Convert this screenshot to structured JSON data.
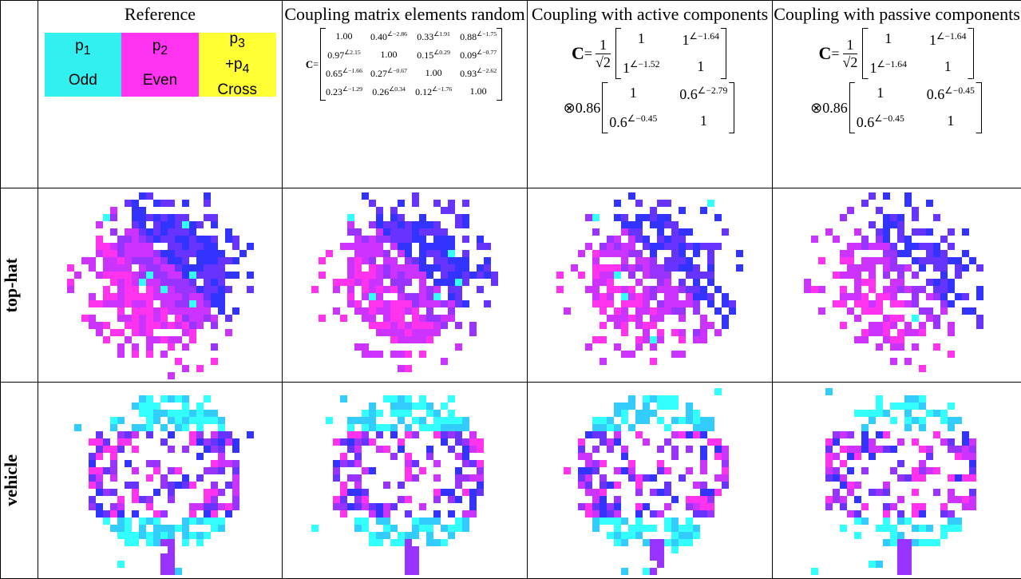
{
  "columns": [
    {
      "title": "Reference",
      "legend": [
        {
          "symbol": [
            {
              "base": "p",
              "sub": "1"
            }
          ],
          "label": "Odd",
          "color": "#33f0f0"
        },
        {
          "symbol": [
            {
              "base": "p",
              "sub": "2"
            }
          ],
          "label": "Even",
          "color": "#ff33f0"
        },
        {
          "symbol": [
            {
              "base": "p",
              "sub": "3"
            },
            {
              "base": "+p",
              "sub": "4"
            }
          ],
          "label": "Cross",
          "color": "#ffff33"
        }
      ]
    },
    {
      "title": "Coupling matrix elements random",
      "formula": {
        "lhs": "C",
        "eq": "=",
        "matrix": [
          [
            {
              "base": "1.00"
            },
            {
              "base": "0.40",
              "exp": "∠−2.86"
            },
            {
              "base": "0.33",
              "exp": "∠1.91"
            },
            {
              "base": "0.88",
              "exp": "∠−1.75"
            }
          ],
          [
            {
              "base": "0.97",
              "exp": "∠2.15"
            },
            {
              "base": "1.00"
            },
            {
              "base": "0.15",
              "exp": "∠0.29"
            },
            {
              "base": "0.09",
              "exp": "∠−0.77"
            }
          ],
          [
            {
              "base": "0.65",
              "exp": "∠−1.66"
            },
            {
              "base": "0.27",
              "exp": "∠−0.67"
            },
            {
              "base": "1.00"
            },
            {
              "base": "0.93",
              "exp": "∠−2.62"
            }
          ],
          [
            {
              "base": "0.23",
              "exp": "∠−1.29"
            },
            {
              "base": "0.26",
              "exp": "∠0.34"
            },
            {
              "base": "0.12",
              "exp": "∠−1.76"
            },
            {
              "base": "1.00"
            }
          ]
        ]
      }
    },
    {
      "title": "Coupling with active components",
      "formula": {
        "lhs": "C",
        "eq": "=",
        "frac": [
          "1",
          "√2"
        ],
        "matrix": [
          [
            {
              "base": "1"
            },
            {
              "base": "1",
              "exp": "∠−1.64"
            }
          ],
          [
            {
              "base": "1",
              "exp": "∠−1.52"
            },
            {
              "base": "1"
            }
          ]
        ],
        "op": "⊗",
        "scale": "0.86",
        "matrix2": [
          [
            {
              "base": "1"
            },
            {
              "base": "0.6",
              "exp": "∠−2.79"
            }
          ],
          [
            {
              "base": "0.6",
              "exp": "∠−0.45"
            },
            {
              "base": "1"
            }
          ]
        ]
      }
    },
    {
      "title": "Coupling with passive components",
      "formula": {
        "lhs": "C",
        "eq": "=",
        "frac": [
          "1",
          "√2"
        ],
        "matrix": [
          [
            {
              "base": "1"
            },
            {
              "base": "1",
              "exp": "∠−1.64"
            }
          ],
          [
            {
              "base": "1",
              "exp": "∠−1.64"
            },
            {
              "base": "1"
            }
          ]
        ],
        "op": "⊗",
        "scale": "0.86",
        "matrix2": [
          [
            {
              "base": "1"
            },
            {
              "base": "0.6",
              "exp": "∠−0.45"
            }
          ],
          [
            {
              "base": "0.6",
              "exp": "∠−0.45"
            },
            {
              "base": "1"
            }
          ]
        ]
      }
    }
  ],
  "rows": [
    "top-hat",
    "vehicle"
  ]
}
